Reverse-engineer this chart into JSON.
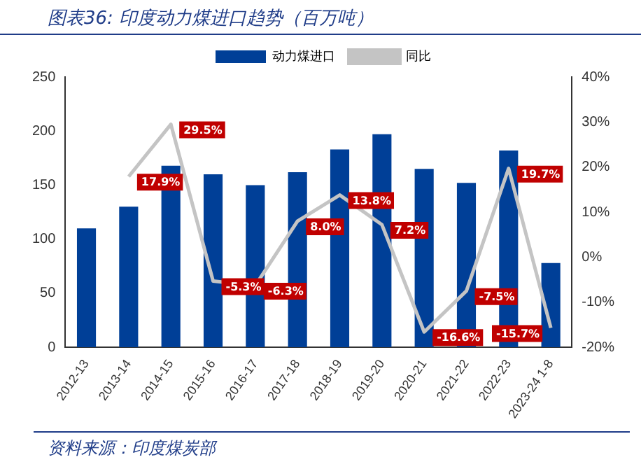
{
  "chart_data": {
    "type": "bar",
    "title": "图表36:  印度动力煤进口趋势（百万吨）",
    "categories": [
      "2012-13",
      "2013-14",
      "2014-15",
      "2015-16",
      "2016-17",
      "2017-18",
      "2018-19",
      "2019-20",
      "2020-21",
      "2021-22",
      "2022-23",
      "2023-24 1-8"
    ],
    "series": [
      {
        "name": "动力煤进口",
        "color": "#003f97",
        "values": [
          110,
          130,
          168,
          160,
          150,
          162,
          183,
          197,
          165,
          152,
          182,
          78
        ]
      },
      {
        "name": "同比",
        "type": "line",
        "axis": "y2",
        "color": "#c4c4c4",
        "values": [
          null,
          17.9,
          29.5,
          -5.3,
          -6.3,
          8.0,
          13.8,
          7.2,
          -16.6,
          -7.5,
          19.7,
          -15.7
        ],
        "value_labels": [
          null,
          "17.9%",
          "29.5%",
          "-5.3%",
          "-6.3%",
          "8.0%",
          "13.8%",
          "7.2%",
          "-16.6%",
          "-7.5%",
          "19.7%",
          "-15.7%"
        ]
      }
    ],
    "ylim": [
      0,
      250
    ],
    "yticks": [
      0,
      50,
      100,
      150,
      200,
      250
    ],
    "y2lim": [
      -20,
      40
    ],
    "y2ticks": [
      {
        "value": -20,
        "label": "-20%"
      },
      {
        "value": -10,
        "label": "-10%"
      },
      {
        "value": 0,
        "label": "0%"
      },
      {
        "value": 10,
        "label": "10%"
      },
      {
        "value": 20,
        "label": "20%"
      },
      {
        "value": 30,
        "label": "30%"
      },
      {
        "value": 40,
        "label": "40%"
      }
    ],
    "legend": "top",
    "grid": false,
    "marker": "none",
    "annotations": [
      "资料来源：印度煤炭部"
    ]
  }
}
